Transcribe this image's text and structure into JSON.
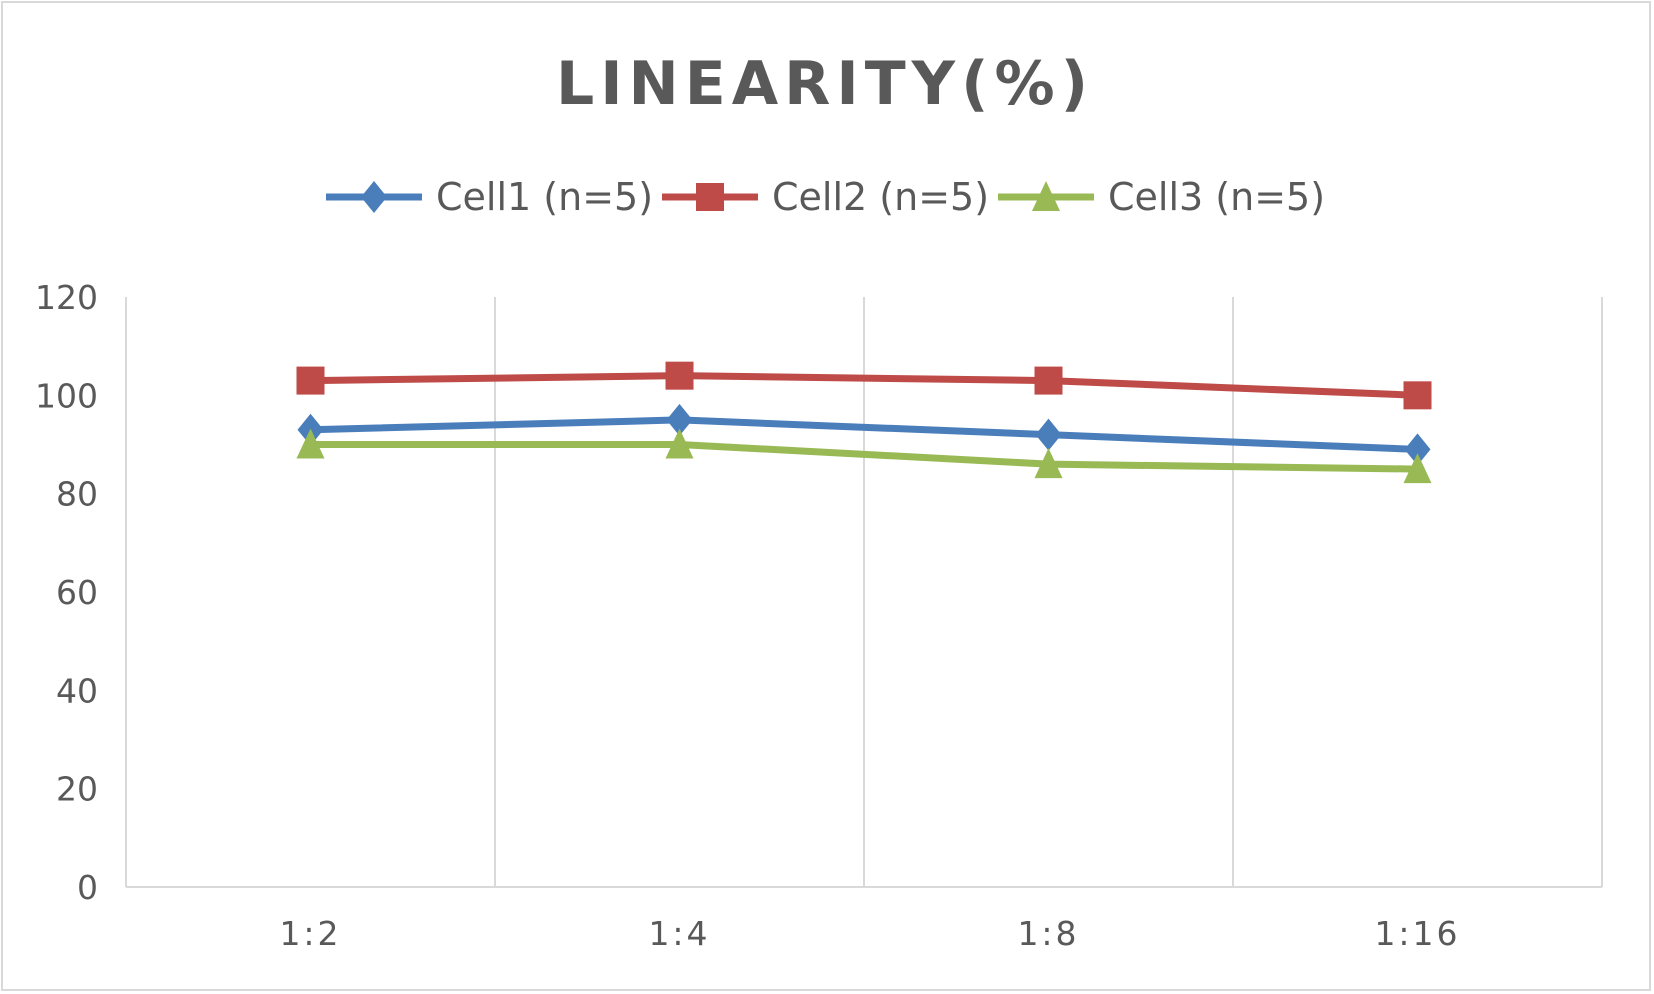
{
  "chart_data": {
    "type": "line",
    "title": "LINEARITY(%)",
    "categories": [
      "1:2",
      "1:4",
      "1:8",
      "1:16"
    ],
    "ylim": [
      0,
      120
    ],
    "yticks": [
      0,
      20,
      40,
      60,
      80,
      100,
      120
    ],
    "grid": "vertical",
    "legend": "top",
    "series": [
      {
        "name": "Cell1 (n=5)",
        "color": "#4a7ebb",
        "marker": "diamond",
        "values": [
          93,
          95,
          92,
          89
        ]
      },
      {
        "name": "Cell2 (n=5)",
        "color": "#be4b48",
        "marker": "square",
        "values": [
          103,
          104,
          103,
          100
        ]
      },
      {
        "name": "Cell3 (n=5)",
        "color": "#98b954",
        "marker": "triangle",
        "values": [
          90,
          90,
          86,
          85
        ]
      }
    ]
  }
}
